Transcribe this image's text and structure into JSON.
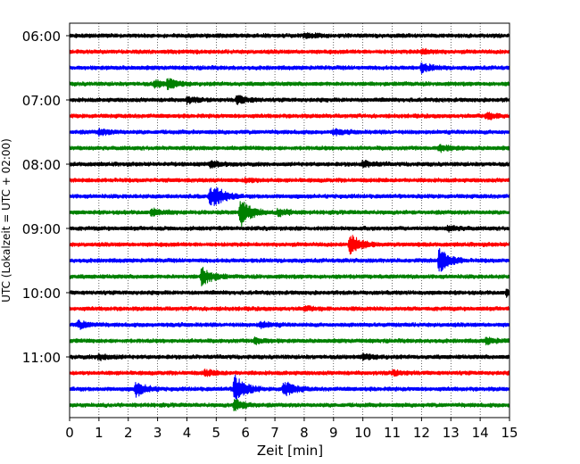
{
  "chart_data": {
    "type": "line",
    "title": "",
    "xlabel": "Zeit  [min]",
    "ylabel": "UTC (Lokalzeit = UTC + 02:00)",
    "xlim": [
      0,
      15
    ],
    "x_ticks": [
      0,
      1,
      2,
      3,
      4,
      5,
      6,
      7,
      8,
      9,
      10,
      11,
      12,
      13,
      14,
      15
    ],
    "y_ticks": [
      "06:00",
      "07:00",
      "08:00",
      "09:00",
      "10:00",
      "11:00"
    ],
    "grid": "vertical-dotted",
    "colors": [
      "#000000",
      "#ff0000",
      "#0000ff",
      "#008000"
    ],
    "traces": [
      {
        "start": "06:00",
        "color": "#000000",
        "events": [
          {
            "t": 8.0,
            "amp": 0.25
          }
        ]
      },
      {
        "start": "06:15",
        "color": "#ff0000",
        "events": [
          {
            "t": 12.0,
            "amp": 0.25
          }
        ]
      },
      {
        "start": "06:30",
        "color": "#0000ff",
        "events": [
          {
            "t": 12.0,
            "amp": 0.45
          }
        ]
      },
      {
        "start": "06:45",
        "color": "#008000",
        "events": [
          {
            "t": 2.9,
            "amp": 0.35
          },
          {
            "t": 3.35,
            "amp": 0.5
          }
        ]
      },
      {
        "start": "07:00",
        "color": "#000000",
        "events": [
          {
            "t": 4.0,
            "amp": 0.3
          },
          {
            "t": 5.7,
            "amp": 0.45
          }
        ]
      },
      {
        "start": "07:15",
        "color": "#ff0000",
        "events": [
          {
            "t": 14.2,
            "amp": 0.35
          }
        ]
      },
      {
        "start": "07:30",
        "color": "#0000ff",
        "events": [
          {
            "t": 1.0,
            "amp": 0.3
          },
          {
            "t": 9.0,
            "amp": 0.25
          }
        ]
      },
      {
        "start": "07:45",
        "color": "#008000",
        "events": [
          {
            "t": 12.6,
            "amp": 0.35
          }
        ]
      },
      {
        "start": "08:00",
        "color": "#000000",
        "events": [
          {
            "t": 4.8,
            "amp": 0.3
          },
          {
            "t": 10.0,
            "amp": 0.3
          }
        ]
      },
      {
        "start": "08:15",
        "color": "#ff0000",
        "events": [
          {
            "t": 6.0,
            "amp": 0.2
          }
        ]
      },
      {
        "start": "08:30",
        "color": "#0000ff",
        "events": [
          {
            "t": 4.78,
            "amp": 1.0
          },
          {
            "t": 4.95,
            "amp": 0.6
          }
        ]
      },
      {
        "start": "08:45",
        "color": "#008000",
        "events": [
          {
            "t": 2.8,
            "amp": 0.4
          },
          {
            "t": 5.82,
            "amp": 1.6
          },
          {
            "t": 7.1,
            "amp": 0.4
          }
        ]
      },
      {
        "start": "09:00",
        "color": "#000000",
        "events": [
          {
            "t": 12.9,
            "amp": 0.25
          }
        ]
      },
      {
        "start": "09:15",
        "color": "#ff0000",
        "events": [
          {
            "t": 9.55,
            "amp": 1.2
          }
        ]
      },
      {
        "start": "09:30",
        "color": "#0000ff",
        "events": [
          {
            "t": 12.6,
            "amp": 1.4
          }
        ]
      },
      {
        "start": "09:45",
        "color": "#008000",
        "events": [
          {
            "t": 4.5,
            "amp": 1.0
          }
        ]
      },
      {
        "start": "10:00",
        "color": "#000000",
        "events": [
          {
            "t": 14.9,
            "amp": 0.35
          }
        ]
      },
      {
        "start": "10:15",
        "color": "#ff0000",
        "events": [
          {
            "t": 8.0,
            "amp": 0.2
          }
        ]
      },
      {
        "start": "10:30",
        "color": "#0000ff",
        "events": [
          {
            "t": 0.3,
            "amp": 0.4
          },
          {
            "t": 6.5,
            "amp": 0.3
          }
        ]
      },
      {
        "start": "10:45",
        "color": "#008000",
        "events": [
          {
            "t": 6.3,
            "amp": 0.3
          },
          {
            "t": 14.2,
            "amp": 0.3
          }
        ]
      },
      {
        "start": "11:00",
        "color": "#000000",
        "events": [
          {
            "t": 1.0,
            "amp": 0.3
          },
          {
            "t": 10.0,
            "amp": 0.3
          }
        ]
      },
      {
        "start": "11:15",
        "color": "#ff0000",
        "events": [
          {
            "t": 4.6,
            "amp": 0.3
          },
          {
            "t": 11.0,
            "amp": 0.25
          }
        ]
      },
      {
        "start": "11:30",
        "color": "#0000ff",
        "events": [
          {
            "t": 2.25,
            "amp": 0.8
          },
          {
            "t": 5.62,
            "amp": 1.6
          },
          {
            "t": 7.3,
            "amp": 0.9
          }
        ]
      },
      {
        "start": "11:45",
        "color": "#008000",
        "events": [
          {
            "t": 5.6,
            "amp": 0.6
          }
        ]
      }
    ]
  }
}
